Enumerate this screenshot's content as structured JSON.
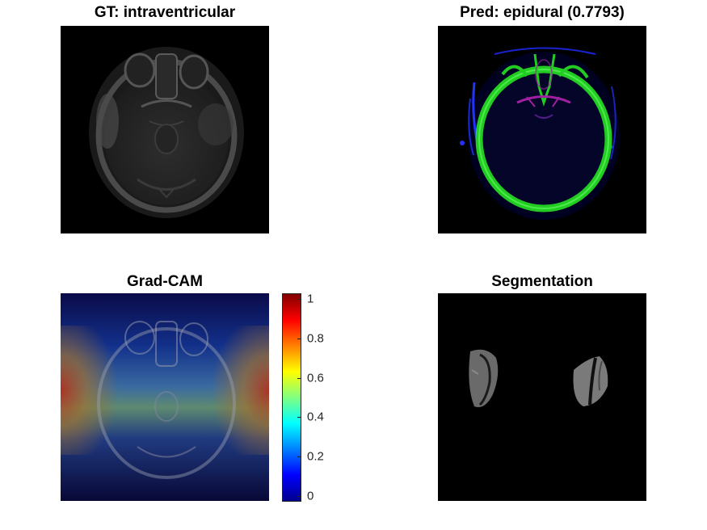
{
  "figure": {
    "panels": [
      {
        "id": "gt",
        "title": "GT: intraventricular"
      },
      {
        "id": "pred",
        "title": "Pred: epidural (0.7793)"
      },
      {
        "id": "gradcam",
        "title": "Grad-CAM"
      },
      {
        "id": "segmentation",
        "title": "Segmentation"
      }
    ],
    "colorbar": {
      "colormap": "jet",
      "range": [
        -0.03,
        1.03
      ],
      "ticks": [
        {
          "value": 1,
          "label": "1"
        },
        {
          "value": 0.8,
          "label": "0.8"
        },
        {
          "value": 0.6,
          "label": "0.6"
        },
        {
          "value": 0.4,
          "label": "0.4"
        },
        {
          "value": 0.2,
          "label": "0.2"
        },
        {
          "value": 0,
          "label": "0"
        }
      ]
    }
  },
  "colors": {
    "background": "#ffffff",
    "image_background": "#000000",
    "edge_green": "#22cc22",
    "edge_blue": "#2233ff",
    "edge_magenta": "#a020a0"
  }
}
